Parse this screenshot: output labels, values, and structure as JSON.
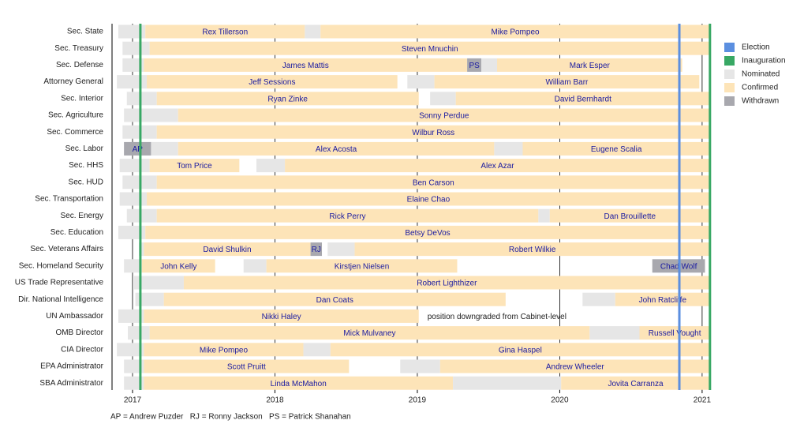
{
  "chart_data": {
    "type": "timeline",
    "xlim": [
      2016.845,
      2021.056
    ],
    "xticks": [
      2017,
      2018,
      2019,
      2020,
      2021
    ],
    "grid": true,
    "events": [
      {
        "name": "Election",
        "color": "#5b8fe0",
        "values": [
          2020.84
        ]
      },
      {
        "name": "Inauguration",
        "color": "#38a864",
        "values": [
          2017.055,
          2021.055
        ]
      }
    ],
    "statuses": [
      {
        "name": "Nominated",
        "color": "#e6e6e6"
      },
      {
        "name": "Confirmed",
        "color": "#fde4b8"
      },
      {
        "name": "Withdrawn",
        "color": "#a8a8ae"
      }
    ],
    "rows": [
      {
        "label": "Sec. State",
        "segments": [
          {
            "start": 2016.9,
            "end": 2017.09,
            "status": "Nominated"
          },
          {
            "start": 2017.09,
            "end": 2018.21,
            "status": "Confirmed",
            "name": "Rex Tillerson"
          },
          {
            "start": 2018.21,
            "end": 2018.32,
            "status": "Nominated"
          },
          {
            "start": 2018.32,
            "end": 2021.055,
            "status": "Confirmed",
            "name": "Mike Pompeo"
          }
        ]
      },
      {
        "label": "Sec. Treasury",
        "segments": [
          {
            "start": 2016.93,
            "end": 2017.12,
            "status": "Nominated"
          },
          {
            "start": 2017.12,
            "end": 2021.055,
            "status": "Confirmed",
            "name": "Steven Mnuchin"
          }
        ]
      },
      {
        "label": "Sec. Defense",
        "segments": [
          {
            "start": 2016.93,
            "end": 2017.08,
            "status": "Nominated"
          },
          {
            "start": 2017.08,
            "end": 2019.35,
            "status": "Confirmed",
            "name": "James Mattis"
          },
          {
            "start": 2019.35,
            "end": 2019.45,
            "status": "Withdrawn",
            "name": "PS"
          },
          {
            "start": 2019.45,
            "end": 2019.56,
            "status": "Nominated"
          },
          {
            "start": 2019.56,
            "end": 2020.86,
            "status": "Confirmed",
            "name": "Mark Esper"
          }
        ]
      },
      {
        "label": "Attorney General",
        "segments": [
          {
            "start": 2016.89,
            "end": 2017.1,
            "status": "Nominated"
          },
          {
            "start": 2017.1,
            "end": 2018.86,
            "status": "Confirmed",
            "name": "Jeff Sessions"
          },
          {
            "start": 2018.93,
            "end": 2019.12,
            "status": "Nominated"
          },
          {
            "start": 2019.12,
            "end": 2020.98,
            "status": "Confirmed",
            "name": "William Barr"
          }
        ]
      },
      {
        "label": "Sec. Interior",
        "segments": [
          {
            "start": 2016.96,
            "end": 2017.17,
            "status": "Nominated"
          },
          {
            "start": 2017.17,
            "end": 2019.01,
            "status": "Confirmed",
            "name": "Ryan Zinke"
          },
          {
            "start": 2019.09,
            "end": 2019.27,
            "status": "Nominated"
          },
          {
            "start": 2019.27,
            "end": 2021.055,
            "status": "Confirmed",
            "name": "David Bernhardt"
          }
        ]
      },
      {
        "label": "Sec. Agriculture",
        "segments": [
          {
            "start": 2016.94,
            "end": 2017.32,
            "status": "Nominated"
          },
          {
            "start": 2017.32,
            "end": 2021.055,
            "status": "Confirmed",
            "name": "Sonny Perdue"
          }
        ]
      },
      {
        "label": "Sec. Commerce",
        "segments": [
          {
            "start": 2016.93,
            "end": 2017.17,
            "status": "Nominated"
          },
          {
            "start": 2017.17,
            "end": 2021.055,
            "status": "Confirmed",
            "name": "Wilbur Ross"
          }
        ]
      },
      {
        "label": "Sec. Labor",
        "segments": [
          {
            "start": 2016.94,
            "end": 2017.13,
            "status": "Withdrawn",
            "name": "AP"
          },
          {
            "start": 2017.13,
            "end": 2017.32,
            "status": "Nominated"
          },
          {
            "start": 2017.32,
            "end": 2019.54,
            "status": "Confirmed",
            "name": "Alex Acosta"
          },
          {
            "start": 2019.54,
            "end": 2019.74,
            "status": "Nominated"
          },
          {
            "start": 2019.74,
            "end": 2021.055,
            "status": "Confirmed",
            "name": "Eugene Scalia"
          }
        ]
      },
      {
        "label": "Sec. HHS",
        "segments": [
          {
            "start": 2016.91,
            "end": 2017.12,
            "status": "Nominated"
          },
          {
            "start": 2017.12,
            "end": 2017.75,
            "status": "Confirmed",
            "name": "Tom Price"
          },
          {
            "start": 2017.87,
            "end": 2018.07,
            "status": "Nominated"
          },
          {
            "start": 2018.07,
            "end": 2021.055,
            "status": "Confirmed",
            "name": "Alex Azar"
          }
        ]
      },
      {
        "label": "Sec. HUD",
        "segments": [
          {
            "start": 2016.93,
            "end": 2017.17,
            "status": "Nominated"
          },
          {
            "start": 2017.17,
            "end": 2021.055,
            "status": "Confirmed",
            "name": "Ben Carson"
          }
        ]
      },
      {
        "label": "Sec. Transportation",
        "segments": [
          {
            "start": 2016.91,
            "end": 2017.1,
            "status": "Nominated"
          },
          {
            "start": 2017.1,
            "end": 2021.055,
            "status": "Confirmed",
            "name": "Elaine Chao"
          }
        ]
      },
      {
        "label": "Sec. Energy",
        "segments": [
          {
            "start": 2016.96,
            "end": 2017.17,
            "status": "Nominated"
          },
          {
            "start": 2017.17,
            "end": 2019.85,
            "status": "Confirmed",
            "name": "Rick Perry"
          },
          {
            "start": 2019.85,
            "end": 2019.93,
            "status": "Nominated"
          },
          {
            "start": 2019.93,
            "end": 2021.055,
            "status": "Confirmed",
            "name": "Dan Brouillette"
          }
        ]
      },
      {
        "label": "Sec. Education",
        "segments": [
          {
            "start": 2016.9,
            "end": 2017.09,
            "status": "Nominated"
          },
          {
            "start": 2017.09,
            "end": 2021.055,
            "status": "Confirmed",
            "name": "Betsy DeVos"
          }
        ]
      },
      {
        "label": "Sec. Veterans Affairs",
        "segments": [
          {
            "start": 2017.045,
            "end": 2017.08,
            "status": "Nominated"
          },
          {
            "start": 2017.08,
            "end": 2018.25,
            "status": "Confirmed",
            "name": "David Shulkin"
          },
          {
            "start": 2018.25,
            "end": 2018.33,
            "status": "Withdrawn",
            "name": "RJ"
          },
          {
            "start": 2018.37,
            "end": 2018.56,
            "status": "Nominated"
          },
          {
            "start": 2018.56,
            "end": 2021.055,
            "status": "Confirmed",
            "name": "Robert Wilkie"
          }
        ]
      },
      {
        "label": "Sec. Homeland Security",
        "segments": [
          {
            "start": 2016.94,
            "end": 2017.066,
            "status": "Nominated"
          },
          {
            "start": 2017.066,
            "end": 2017.58,
            "status": "Confirmed",
            "name": "John Kelly"
          },
          {
            "start": 2017.78,
            "end": 2017.94,
            "status": "Nominated"
          },
          {
            "start": 2017.94,
            "end": 2019.28,
            "status": "Confirmed",
            "name": "Kirstjen Nielsen"
          },
          {
            "start": 2020.65,
            "end": 2021.02,
            "status": "Withdrawn",
            "name": "Chad Wolf"
          }
        ]
      },
      {
        "label": "US Trade Representative",
        "segments": [
          {
            "start": 2017.01,
            "end": 2017.36,
            "status": "Nominated"
          },
          {
            "start": 2017.36,
            "end": 2021.055,
            "status": "Confirmed",
            "name": "Robert Lighthizer"
          }
        ]
      },
      {
        "label": "Dir. National Intelligence",
        "segments": [
          {
            "start": 2017.02,
            "end": 2017.22,
            "status": "Nominated"
          },
          {
            "start": 2017.22,
            "end": 2019.62,
            "status": "Confirmed",
            "name": "Dan Coats"
          },
          {
            "start": 2020.16,
            "end": 2020.39,
            "status": "Nominated"
          },
          {
            "start": 2020.39,
            "end": 2021.055,
            "status": "Confirmed",
            "name": "John Ratcliffe"
          }
        ]
      },
      {
        "label": "UN Ambassador",
        "note": "position downgraded from Cabinet-level",
        "segments": [
          {
            "start": 2016.9,
            "end": 2017.08,
            "status": "Nominated"
          },
          {
            "start": 2017.08,
            "end": 2019.01,
            "status": "Confirmed",
            "name": "Nikki Haley"
          }
        ]
      },
      {
        "label": "OMB Director",
        "segments": [
          {
            "start": 2016.967,
            "end": 2017.12,
            "status": "Nominated"
          },
          {
            "start": 2017.12,
            "end": 2020.21,
            "status": "Confirmed",
            "name": "Mick Mulvaney"
          },
          {
            "start": 2020.21,
            "end": 2020.56,
            "status": "Nominated"
          },
          {
            "start": 2020.56,
            "end": 2021.055,
            "status": "Confirmed",
            "name": "Russell Vought"
          }
        ]
      },
      {
        "label": "CIA Director",
        "segments": [
          {
            "start": 2016.89,
            "end": 2017.08,
            "status": "Nominated"
          },
          {
            "start": 2017.08,
            "end": 2018.2,
            "status": "Confirmed",
            "name": "Mike Pompeo"
          },
          {
            "start": 2018.2,
            "end": 2018.39,
            "status": "Nominated"
          },
          {
            "start": 2018.39,
            "end": 2021.055,
            "status": "Confirmed",
            "name": "Gina Haspel"
          }
        ]
      },
      {
        "label": "EPA Administrator",
        "segments": [
          {
            "start": 2016.94,
            "end": 2017.08,
            "status": "Nominated"
          },
          {
            "start": 2017.08,
            "end": 2018.52,
            "status": "Confirmed",
            "name": "Scott Pruitt"
          },
          {
            "start": 2018.88,
            "end": 2019.16,
            "status": "Nominated"
          },
          {
            "start": 2019.16,
            "end": 2021.055,
            "status": "Confirmed",
            "name": "Andrew Wheeler"
          }
        ]
      },
      {
        "label": "SBA Administrator",
        "segments": [
          {
            "start": 2016.94,
            "end": 2017.08,
            "status": "Nominated"
          },
          {
            "start": 2017.08,
            "end": 2019.25,
            "status": "Confirmed",
            "name": "Linda McMahon"
          },
          {
            "start": 2019.25,
            "end": 2020.01,
            "status": "Nominated"
          },
          {
            "start": 2020.01,
            "end": 2021.055,
            "status": "Confirmed",
            "name": "Jovita Carranza"
          }
        ]
      }
    ],
    "footnote": "AP = Andrew Puzder   RJ = Ronny Jackson   PS = Patrick Shanahan"
  }
}
